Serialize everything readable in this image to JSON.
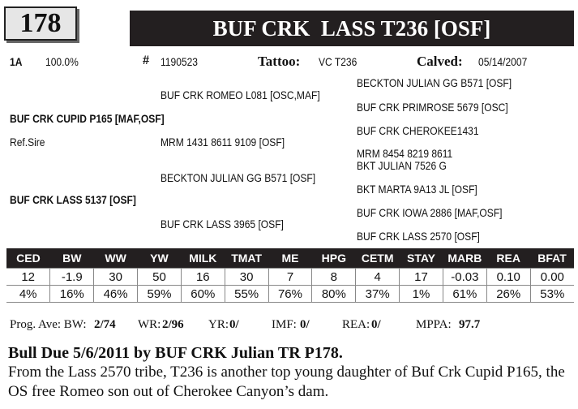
{
  "lot": {
    "number": "178"
  },
  "animal": {
    "name": "BUF CRK  LASS T236 [OSF]",
    "code": "1A",
    "percent": "100.0%",
    "reg_label": "#",
    "reg_number": "1190523",
    "tattoo_label": "Tattoo:",
    "tattoo": "VC T236",
    "calved_label": "Calved:",
    "calved": "05/14/2007"
  },
  "pedigree": {
    "sire": "BUF CRK CUPID P165 [MAF,OSF]",
    "ref_sire": "Ref.Sire",
    "dam": "BUF CRK LASS 5137 [OSF]",
    "sire_sire": "BUF CRK ROMEO L081 [OSC,MAF]",
    "sire_dam": "MRM 1431 8611 9109  [OSF]",
    "dam_sire": "BECKTON JULIAN GG B571 [OSF]",
    "dam_dam": "BUF CRK LASS 3965 [OSF]",
    "ggp": [
      "BECKTON JULIAN GG B571 [OSF]",
      "BUF CRK PRIMROSE 5679 [OSC]",
      "BUF CRK CHEROKEE1431",
      "MRM 8454 8219 8611",
      "BKT JULIAN 7526 G",
      "BKT MARTA 9A13 JL [OSF]",
      "BUF CRK IOWA 2886 [MAF,OSF]",
      "BUF CRK LASS 2570 [OSF]"
    ]
  },
  "epd": {
    "headers": [
      "CED",
      "BW",
      "WW",
      "YW",
      "MILK",
      "TMAT",
      "ME",
      "HPG",
      "CETM",
      "STAY",
      "MARB",
      "REA",
      "BFAT"
    ],
    "values": [
      "12",
      "-1.9",
      "30",
      "50",
      "16",
      "30",
      "7",
      "8",
      "4",
      "17",
      "-0.03",
      "0.10",
      "0.00"
    ],
    "percentiles": [
      "4%",
      "16%",
      "46%",
      "59%",
      "60%",
      "55%",
      "76%",
      "80%",
      "37%",
      "1%",
      "61%",
      "26%",
      "53%"
    ]
  },
  "progeny": {
    "bw_label": "Prog. Ave: BW:",
    "bw": "2/74",
    "wr_label": "WR:",
    "wr": "2/96",
    "yr_label": "YR:",
    "yr": "0/",
    "imf_label": "IMF:",
    "imf": "0/",
    "rea_label": "REA:",
    "rea": "0/",
    "mppa_label": "MPPA:",
    "mppa": "97.7"
  },
  "notes": {
    "bull_due": "Bull Due 5/6/2011 by BUF CRK Julian TR P178.",
    "description": "From the Lass 2570 tribe, T236 is another top young daughter of Buf Crk Cupid P165, the OS free Romeo son out of Cherokee Canyon’s dam."
  }
}
